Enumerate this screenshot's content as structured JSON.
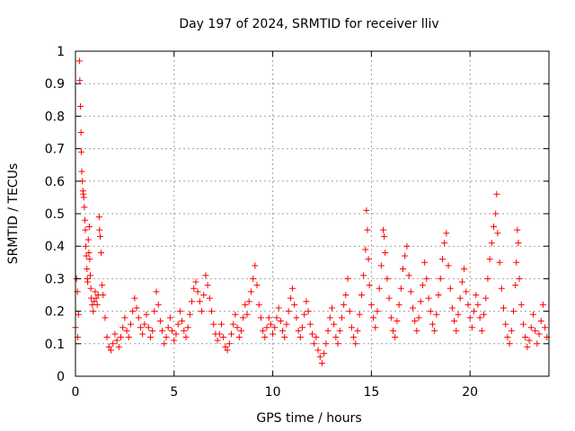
{
  "chart_data": {
    "type": "scatter",
    "title": "Day 197 of 2024, SRMTID for receiver lliv",
    "xlabel": "GPS time / hours",
    "ylabel": "SRMTID / TECUs",
    "xlim": [
      0,
      24
    ],
    "ylim": [
      0,
      1
    ],
    "x_ticks": [
      0,
      5,
      10,
      15,
      20
    ],
    "y_ticks": [
      0,
      0.1,
      0.2,
      0.3,
      0.4,
      0.5,
      0.6,
      0.7,
      0.8,
      0.9,
      1
    ],
    "x_tick_labels": [
      "0",
      "5",
      "10",
      "15",
      "20"
    ],
    "y_tick_labels": [
      "0",
      "0.1",
      "0.2",
      "0.3",
      "0.4",
      "0.5",
      "0.6",
      "0.7",
      "0.8",
      "0.9",
      "1"
    ],
    "grid": true,
    "marker": "+",
    "series": [
      {
        "name": "SRMTID",
        "color": "#ff0000",
        "points": [
          [
            0.0,
            0.15
          ],
          [
            0.05,
            0.3
          ],
          [
            0.1,
            0.26
          ],
          [
            0.12,
            0.12
          ],
          [
            0.15,
            0.19
          ],
          [
            0.2,
            0.97
          ],
          [
            0.22,
            0.91
          ],
          [
            0.25,
            0.83
          ],
          [
            0.28,
            0.75
          ],
          [
            0.3,
            0.69
          ],
          [
            0.32,
            0.63
          ],
          [
            0.35,
            0.6
          ],
          [
            0.38,
            0.57
          ],
          [
            0.4,
            0.56
          ],
          [
            0.42,
            0.55
          ],
          [
            0.45,
            0.52
          ],
          [
            0.48,
            0.48
          ],
          [
            0.5,
            0.45
          ],
          [
            0.52,
            0.4
          ],
          [
            0.55,
            0.37
          ],
          [
            0.58,
            0.33
          ],
          [
            0.6,
            0.3
          ],
          [
            0.62,
            0.29
          ],
          [
            0.65,
            0.42
          ],
          [
            0.68,
            0.38
          ],
          [
            0.7,
            0.46
          ],
          [
            0.72,
            0.36
          ],
          [
            0.75,
            0.31
          ],
          [
            0.78,
            0.27
          ],
          [
            0.8,
            0.24
          ],
          [
            0.85,
            0.22
          ],
          [
            0.9,
            0.2
          ],
          [
            0.95,
            0.23
          ],
          [
            1.0,
            0.26
          ],
          [
            1.05,
            0.24
          ],
          [
            1.1,
            0.22
          ],
          [
            1.15,
            0.25
          ],
          [
            1.2,
            0.49
          ],
          [
            1.22,
            0.45
          ],
          [
            1.25,
            0.43
          ],
          [
            1.3,
            0.38
          ],
          [
            1.35,
            0.28
          ],
          [
            1.4,
            0.25
          ],
          [
            1.5,
            0.18
          ],
          [
            1.6,
            0.12
          ],
          [
            1.7,
            0.09
          ],
          [
            1.8,
            0.08
          ],
          [
            1.9,
            0.1
          ],
          [
            2.0,
            0.13
          ],
          [
            2.1,
            0.11
          ],
          [
            2.2,
            0.09
          ],
          [
            2.3,
            0.12
          ],
          [
            2.4,
            0.15
          ],
          [
            2.5,
            0.18
          ],
          [
            2.6,
            0.14
          ],
          [
            2.7,
            0.12
          ],
          [
            2.8,
            0.16
          ],
          [
            2.9,
            0.2
          ],
          [
            3.0,
            0.24
          ],
          [
            3.1,
            0.21
          ],
          [
            3.2,
            0.18
          ],
          [
            3.3,
            0.15
          ],
          [
            3.4,
            0.13
          ],
          [
            3.5,
            0.16
          ],
          [
            3.6,
            0.19
          ],
          [
            3.7,
            0.15
          ],
          [
            3.8,
            0.12
          ],
          [
            3.9,
            0.14
          ],
          [
            4.0,
            0.2
          ],
          [
            4.1,
            0.26
          ],
          [
            4.2,
            0.22
          ],
          [
            4.3,
            0.17
          ],
          [
            4.4,
            0.14
          ],
          [
            4.5,
            0.1
          ],
          [
            4.6,
            0.12
          ],
          [
            4.7,
            0.15
          ],
          [
            4.8,
            0.18
          ],
          [
            4.9,
            0.14
          ],
          [
            5.0,
            0.11
          ],
          [
            5.1,
            0.13
          ],
          [
            5.2,
            0.16
          ],
          [
            5.3,
            0.2
          ],
          [
            5.4,
            0.17
          ],
          [
            5.5,
            0.14
          ],
          [
            5.6,
            0.12
          ],
          [
            5.7,
            0.15
          ],
          [
            5.8,
            0.19
          ],
          [
            5.9,
            0.23
          ],
          [
            6.0,
            0.27
          ],
          [
            6.1,
            0.29
          ],
          [
            6.2,
            0.26
          ],
          [
            6.3,
            0.23
          ],
          [
            6.4,
            0.2
          ],
          [
            6.5,
            0.25
          ],
          [
            6.6,
            0.31
          ],
          [
            6.7,
            0.28
          ],
          [
            6.8,
            0.24
          ],
          [
            6.9,
            0.2
          ],
          [
            7.0,
            0.16
          ],
          [
            7.1,
            0.13
          ],
          [
            7.2,
            0.11
          ],
          [
            7.3,
            0.13
          ],
          [
            7.4,
            0.16
          ],
          [
            7.5,
            0.12
          ],
          [
            7.6,
            0.09
          ],
          [
            7.7,
            0.08
          ],
          [
            7.8,
            0.1
          ],
          [
            7.9,
            0.13
          ],
          [
            8.0,
            0.16
          ],
          [
            8.1,
            0.19
          ],
          [
            8.2,
            0.15
          ],
          [
            8.3,
            0.12
          ],
          [
            8.4,
            0.14
          ],
          [
            8.5,
            0.18
          ],
          [
            8.6,
            0.22
          ],
          [
            8.7,
            0.19
          ],
          [
            8.8,
            0.23
          ],
          [
            8.9,
            0.26
          ],
          [
            9.0,
            0.3
          ],
          [
            9.1,
            0.34
          ],
          [
            9.2,
            0.28
          ],
          [
            9.3,
            0.22
          ],
          [
            9.4,
            0.18
          ],
          [
            9.5,
            0.14
          ],
          [
            9.6,
            0.12
          ],
          [
            9.7,
            0.15
          ],
          [
            9.8,
            0.18
          ],
          [
            9.9,
            0.16
          ],
          [
            10.0,
            0.13
          ],
          [
            10.1,
            0.15
          ],
          [
            10.2,
            0.18
          ],
          [
            10.3,
            0.21
          ],
          [
            10.4,
            0.17
          ],
          [
            10.5,
            0.14
          ],
          [
            10.6,
            0.12
          ],
          [
            10.7,
            0.16
          ],
          [
            10.8,
            0.2
          ],
          [
            10.9,
            0.24
          ],
          [
            11.0,
            0.27
          ],
          [
            11.1,
            0.22
          ],
          [
            11.2,
            0.18
          ],
          [
            11.3,
            0.14
          ],
          [
            11.4,
            0.12
          ],
          [
            11.5,
            0.15
          ],
          [
            11.6,
            0.19
          ],
          [
            11.7,
            0.23
          ],
          [
            11.8,
            0.2
          ],
          [
            11.9,
            0.16
          ],
          [
            12.0,
            0.13
          ],
          [
            12.1,
            0.1
          ],
          [
            12.2,
            0.12
          ],
          [
            12.3,
            0.08
          ],
          [
            12.4,
            0.06
          ],
          [
            12.5,
            0.04
          ],
          [
            12.6,
            0.07
          ],
          [
            12.7,
            0.1
          ],
          [
            12.8,
            0.14
          ],
          [
            12.9,
            0.18
          ],
          [
            13.0,
            0.21
          ],
          [
            13.1,
            0.16
          ],
          [
            13.2,
            0.12
          ],
          [
            13.3,
            0.1
          ],
          [
            13.4,
            0.14
          ],
          [
            13.5,
            0.18
          ],
          [
            13.6,
            0.22
          ],
          [
            13.7,
            0.25
          ],
          [
            13.8,
            0.3
          ],
          [
            13.9,
            0.2
          ],
          [
            14.0,
            0.15
          ],
          [
            14.1,
            0.12
          ],
          [
            14.2,
            0.1
          ],
          [
            14.3,
            0.14
          ],
          [
            14.4,
            0.19
          ],
          [
            14.5,
            0.25
          ],
          [
            14.6,
            0.31
          ],
          [
            14.7,
            0.39
          ],
          [
            14.75,
            0.51
          ],
          [
            14.8,
            0.45
          ],
          [
            14.85,
            0.36
          ],
          [
            14.9,
            0.28
          ],
          [
            15.0,
            0.22
          ],
          [
            15.1,
            0.18
          ],
          [
            15.2,
            0.15
          ],
          [
            15.3,
            0.2
          ],
          [
            15.4,
            0.27
          ],
          [
            15.5,
            0.34
          ],
          [
            15.6,
            0.45
          ],
          [
            15.65,
            0.43
          ],
          [
            15.7,
            0.38
          ],
          [
            15.8,
            0.3
          ],
          [
            15.9,
            0.24
          ],
          [
            16.0,
            0.18
          ],
          [
            16.1,
            0.14
          ],
          [
            16.2,
            0.12
          ],
          [
            16.3,
            0.17
          ],
          [
            16.4,
            0.22
          ],
          [
            16.5,
            0.27
          ],
          [
            16.6,
            0.33
          ],
          [
            16.7,
            0.37
          ],
          [
            16.8,
            0.4
          ],
          [
            16.9,
            0.31
          ],
          [
            17.0,
            0.26
          ],
          [
            17.1,
            0.21
          ],
          [
            17.2,
            0.17
          ],
          [
            17.3,
            0.14
          ],
          [
            17.4,
            0.18
          ],
          [
            17.5,
            0.23
          ],
          [
            17.6,
            0.28
          ],
          [
            17.7,
            0.35
          ],
          [
            17.8,
            0.3
          ],
          [
            17.9,
            0.24
          ],
          [
            18.0,
            0.2
          ],
          [
            18.1,
            0.16
          ],
          [
            18.2,
            0.14
          ],
          [
            18.3,
            0.19
          ],
          [
            18.4,
            0.25
          ],
          [
            18.5,
            0.3
          ],
          [
            18.6,
            0.36
          ],
          [
            18.7,
            0.41
          ],
          [
            18.8,
            0.44
          ],
          [
            18.9,
            0.34
          ],
          [
            19.0,
            0.27
          ],
          [
            19.1,
            0.21
          ],
          [
            19.2,
            0.17
          ],
          [
            19.3,
            0.14
          ],
          [
            19.4,
            0.19
          ],
          [
            19.5,
            0.24
          ],
          [
            19.6,
            0.29
          ],
          [
            19.7,
            0.33
          ],
          [
            19.8,
            0.26
          ],
          [
            19.9,
            0.22
          ],
          [
            20.0,
            0.18
          ],
          [
            20.1,
            0.15
          ],
          [
            20.2,
            0.2
          ],
          [
            20.3,
            0.25
          ],
          [
            20.4,
            0.22
          ],
          [
            20.5,
            0.18
          ],
          [
            20.6,
            0.14
          ],
          [
            20.7,
            0.19
          ],
          [
            20.8,
            0.24
          ],
          [
            20.9,
            0.3
          ],
          [
            21.0,
            0.36
          ],
          [
            21.1,
            0.41
          ],
          [
            21.2,
            0.46
          ],
          [
            21.3,
            0.5
          ],
          [
            21.35,
            0.56
          ],
          [
            21.4,
            0.44
          ],
          [
            21.5,
            0.35
          ],
          [
            21.6,
            0.27
          ],
          [
            21.7,
            0.21
          ],
          [
            21.8,
            0.16
          ],
          [
            21.9,
            0.12
          ],
          [
            22.0,
            0.1
          ],
          [
            22.1,
            0.14
          ],
          [
            22.2,
            0.2
          ],
          [
            22.3,
            0.28
          ],
          [
            22.35,
            0.35
          ],
          [
            22.4,
            0.45
          ],
          [
            22.45,
            0.41
          ],
          [
            22.5,
            0.3
          ],
          [
            22.6,
            0.22
          ],
          [
            22.7,
            0.16
          ],
          [
            22.8,
            0.12
          ],
          [
            22.9,
            0.09
          ],
          [
            23.0,
            0.11
          ],
          [
            23.1,
            0.15
          ],
          [
            23.2,
            0.19
          ],
          [
            23.3,
            0.14
          ],
          [
            23.4,
            0.1
          ],
          [
            23.5,
            0.13
          ],
          [
            23.6,
            0.17
          ],
          [
            23.7,
            0.22
          ],
          [
            23.8,
            0.15
          ],
          [
            23.9,
            0.12
          ]
        ]
      }
    ]
  }
}
